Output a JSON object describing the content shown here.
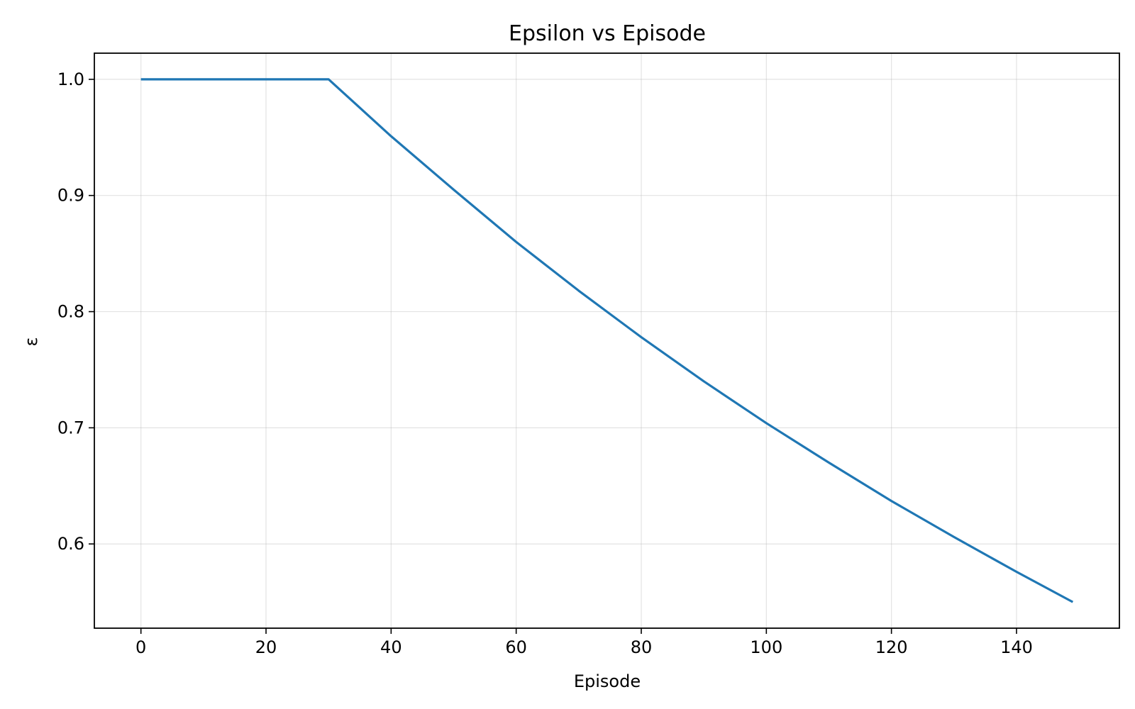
{
  "chart_data": {
    "type": "line",
    "title": "Epsilon vs Episode",
    "xlabel": "Episode",
    "ylabel": "ε",
    "xlim": [
      -7.45,
      156.45
    ],
    "ylim": [
      0.5275,
      1.0225
    ],
    "xticks": [
      0,
      20,
      40,
      60,
      80,
      100,
      120,
      140
    ],
    "xtick_labels": [
      "0",
      "20",
      "40",
      "60",
      "80",
      "100",
      "120",
      "140"
    ],
    "yticks": [
      0.6,
      0.7,
      0.8,
      0.9,
      1.0
    ],
    "ytick_labels": [
      "0.6",
      "0.7",
      "0.8",
      "0.9",
      "1.0"
    ],
    "grid": true,
    "legend": "none",
    "series": [
      {
        "color": "#1f77b4",
        "x": [
          0,
          30,
          40,
          50,
          60,
          70,
          80,
          90,
          100,
          110,
          120,
          130,
          140,
          149
        ],
        "y": [
          1.0,
          1.0,
          0.951,
          0.905,
          0.86,
          0.818,
          0.778,
          0.74,
          0.704,
          0.67,
          0.637,
          0.606,
          0.576,
          0.55
        ]
      }
    ]
  }
}
